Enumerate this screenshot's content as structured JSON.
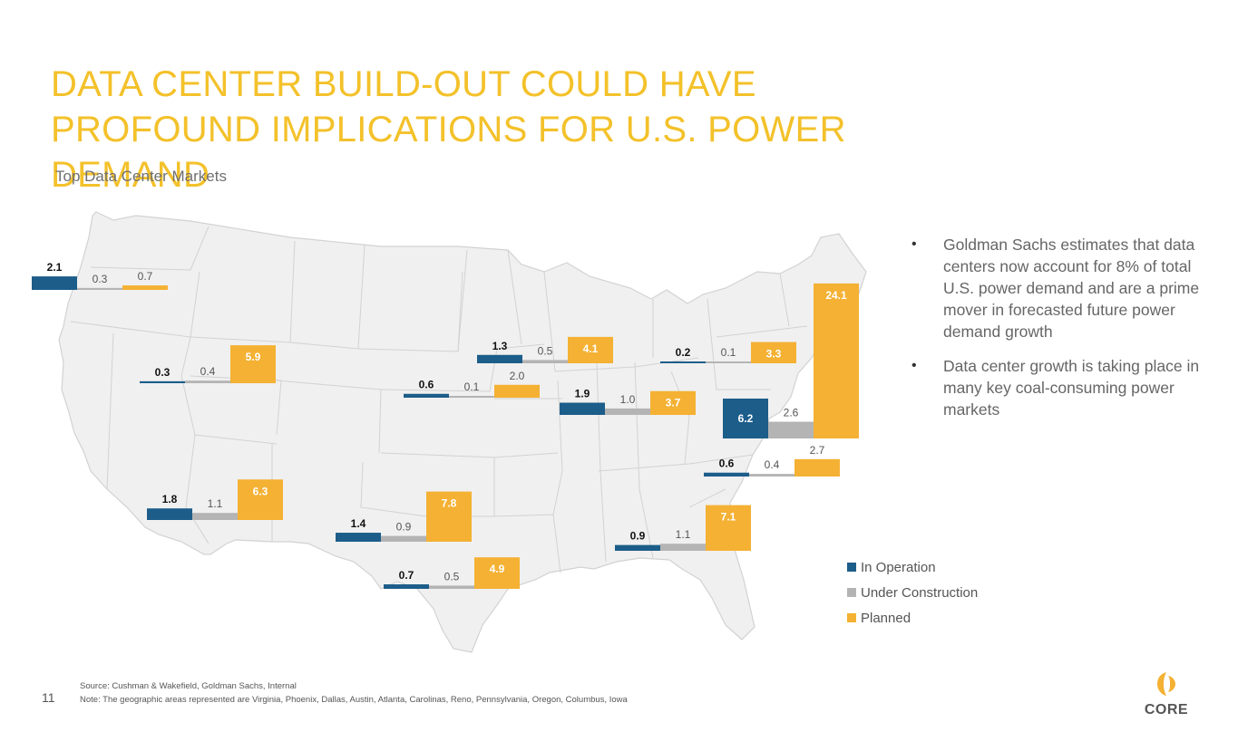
{
  "title": "DATA CENTER BUILD-OUT COULD HAVE PROFOUND IMPLICATIONS FOR U.S. POWER DEMAND",
  "subtitle": "Top Data Center Markets",
  "bullets": [
    "Goldman Sachs estimates that data centers now account for 8% of total U.S. power demand and are a prime mover in forecasted future power demand growth",
    "Data center growth is taking place in many key coal-consuming power markets"
  ],
  "colors": {
    "in_operation": "#1c5d8a",
    "under_construction": "#b4b4b4",
    "planned": "#f4b133",
    "title": "#f3c12a",
    "map_fill": "#f0f0f0",
    "map_stroke": "#d2d2d2"
  },
  "chart_data": {
    "type": "bar",
    "title": "Top Data Center Markets",
    "unit": "",
    "legend_position": "bottom-right",
    "series_names": [
      "In Operation",
      "Under Construction",
      "Planned"
    ],
    "markets": [
      {
        "name": "Oregon",
        "values": [
          2.1,
          0.3,
          0.7
        ],
        "labels": [
          "2.1",
          "0.3",
          "0.7"
        ]
      },
      {
        "name": "Reno",
        "values": [
          0.3,
          0.4,
          5.9
        ],
        "labels": [
          "0.3",
          "0.4",
          "5.9"
        ]
      },
      {
        "name": "Phoenix",
        "values": [
          1.8,
          1.1,
          6.3
        ],
        "labels": [
          "1.8",
          "1.1",
          "6.3"
        ]
      },
      {
        "name": "Dallas",
        "values": [
          1.4,
          0.9,
          7.8
        ],
        "labels": [
          "1.4",
          "0.9",
          "7.8"
        ]
      },
      {
        "name": "Austin",
        "values": [
          0.7,
          0.5,
          4.9
        ],
        "labels": [
          "0.7",
          "0.5",
          "4.9"
        ]
      },
      {
        "name": "Iowa",
        "values": [
          0.6,
          0.1,
          2.0
        ],
        "labels": [
          "0.6",
          "0.1",
          "2.0"
        ]
      },
      {
        "name": "Chicago",
        "values": [
          1.3,
          0.5,
          4.1
        ],
        "labels": [
          "1.3",
          "0.5",
          "4.1"
        ]
      },
      {
        "name": "Columbus",
        "values": [
          1.9,
          1.0,
          3.7
        ],
        "labels": [
          "1.9",
          "1.0",
          "3.7"
        ]
      },
      {
        "name": "Pennsylvania",
        "values": [
          0.2,
          0.1,
          3.3
        ],
        "labels": [
          "0.2",
          "0.1",
          "3.3"
        ]
      },
      {
        "name": "Virginia",
        "values": [
          6.2,
          2.6,
          24.1
        ],
        "labels": [
          "6.2",
          "2.6",
          "24.1"
        ]
      },
      {
        "name": "Carolinas",
        "values": [
          0.6,
          0.4,
          2.7
        ],
        "labels": [
          "0.6",
          "0.4",
          "2.7"
        ]
      },
      {
        "name": "Atlanta",
        "values": [
          0.9,
          1.1,
          7.1
        ],
        "labels": [
          "0.9",
          "1.1",
          "7.1"
        ]
      }
    ]
  },
  "source_note": "Source: Cushman & Wakefield, Goldman Sachs, Internal",
  "areas_note": "Note: The geographic areas represented are Virginia, Phoenix, Dallas, Austin, Atlanta, Carolinas, Reno, Pennsylvania, Oregon, Columbus, Iowa",
  "page_number": "11",
  "logo_text": "CORE"
}
